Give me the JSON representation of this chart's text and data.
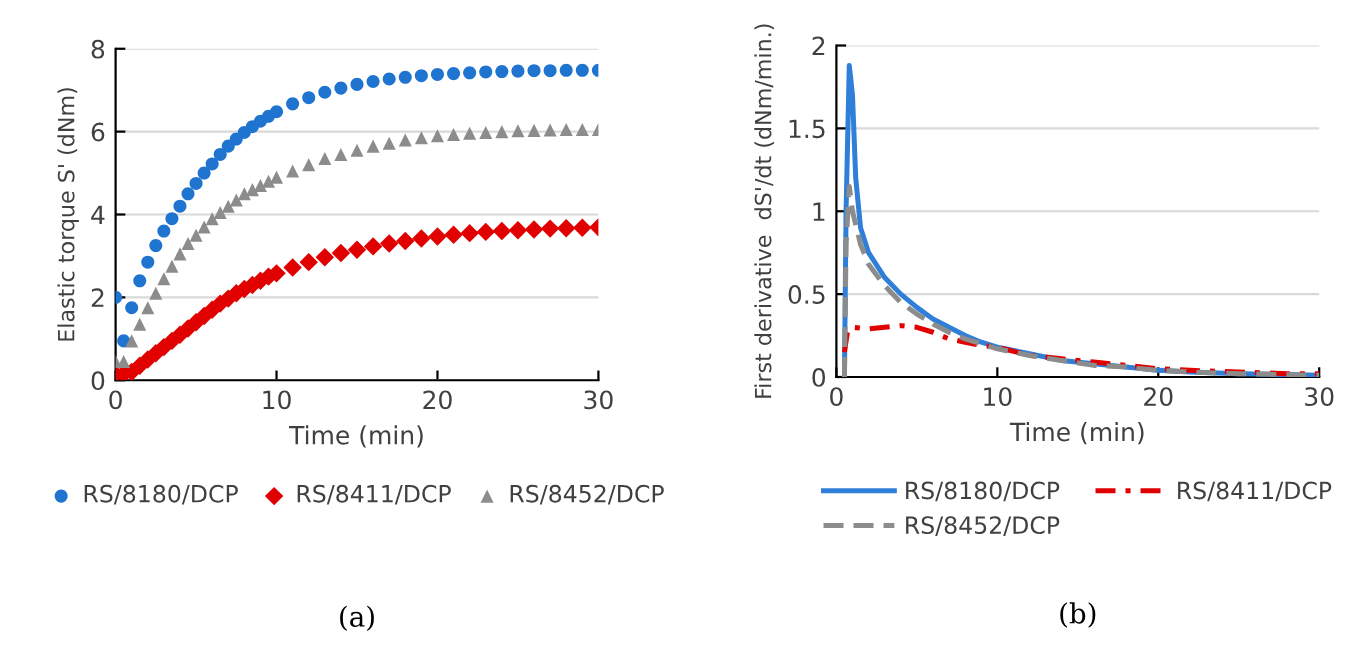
{
  "chart_data": [
    {
      "type": "scatter",
      "xlabel": "Time (min)",
      "ylabel": "Elastic torque S' (dNm)",
      "xlim": [
        0,
        30
      ],
      "xticks": [
        0,
        10,
        20,
        30
      ],
      "ylim": [
        0,
        8
      ],
      "yticks": [
        0,
        2,
        4,
        6,
        8
      ],
      "grid": "y",
      "legend": "bottom",
      "annotations": [
        "(a)"
      ],
      "x": [
        0,
        0.5,
        1,
        1.5,
        2,
        2.5,
        3,
        3.5,
        4,
        4.5,
        5,
        5.5,
        6,
        6.5,
        7,
        7.5,
        8,
        8.5,
        9,
        9.5,
        10,
        11,
        12,
        13,
        14,
        15,
        16,
        17,
        18,
        19,
        20,
        21,
        22,
        23,
        24,
        25,
        26,
        27,
        28,
        29,
        30
      ],
      "series": [
        {
          "name": "RS/8180/DCP",
          "color": "#1f74d0",
          "marker": "circle",
          "values": [
            2.0,
            0.95,
            1.75,
            2.4,
            2.85,
            3.25,
            3.6,
            3.9,
            4.2,
            4.5,
            4.75,
            5.0,
            5.22,
            5.45,
            5.65,
            5.82,
            5.98,
            6.12,
            6.25,
            6.37,
            6.48,
            6.67,
            6.82,
            6.95,
            7.05,
            7.14,
            7.21,
            7.27,
            7.31,
            7.35,
            7.38,
            7.4,
            7.42,
            7.44,
            7.45,
            7.46,
            7.47,
            7.47,
            7.48,
            7.48,
            7.48
          ]
        },
        {
          "name": "RS/8411/DCP",
          "color": "#e00000",
          "marker": "diamond",
          "values": [
            0.15,
            0.15,
            0.2,
            0.35,
            0.5,
            0.65,
            0.8,
            0.95,
            1.1,
            1.25,
            1.4,
            1.55,
            1.7,
            1.85,
            1.97,
            2.1,
            2.2,
            2.3,
            2.4,
            2.5,
            2.58,
            2.72,
            2.85,
            2.97,
            3.07,
            3.15,
            3.23,
            3.3,
            3.36,
            3.42,
            3.47,
            3.51,
            3.55,
            3.58,
            3.6,
            3.62,
            3.64,
            3.66,
            3.67,
            3.68,
            3.69
          ]
        },
        {
          "name": "RS/8452/DCP",
          "color": "#8c8c8c",
          "marker": "triangle",
          "values": [
            0.45,
            0.45,
            0.95,
            1.35,
            1.75,
            2.1,
            2.45,
            2.75,
            3.05,
            3.3,
            3.5,
            3.7,
            3.9,
            4.05,
            4.2,
            4.35,
            4.5,
            4.6,
            4.7,
            4.8,
            4.9,
            5.05,
            5.2,
            5.35,
            5.45,
            5.55,
            5.65,
            5.72,
            5.8,
            5.85,
            5.9,
            5.93,
            5.96,
            5.98,
            6.0,
            6.02,
            6.03,
            6.04,
            6.05,
            6.05,
            6.05
          ]
        }
      ]
    },
    {
      "type": "line",
      "xlabel": "Time (min)",
      "ylabel": "First derivative  dS'/dt (dNm/min.)",
      "xlim": [
        0,
        30
      ],
      "xticks": [
        0,
        10,
        20,
        30
      ],
      "ylim": [
        0,
        2
      ],
      "yticks": [
        0,
        0.5,
        1,
        1.5,
        2
      ],
      "grid": "y",
      "legend": "bottom",
      "annotations": [
        "(b)"
      ],
      "series": [
        {
          "name": "RS/8180/DCP",
          "color": "#2f7ed8",
          "line_style": "solid",
          "x": [
            0.5,
            0.6,
            0.8,
            1.0,
            1.2,
            1.5,
            2,
            3,
            4,
            5,
            6,
            7,
            8,
            9,
            10,
            12,
            14,
            16,
            18,
            20,
            22,
            25,
            30
          ],
          "values": [
            0,
            1.0,
            1.88,
            1.7,
            1.2,
            0.9,
            0.75,
            0.6,
            0.5,
            0.42,
            0.35,
            0.3,
            0.25,
            0.21,
            0.18,
            0.14,
            0.1,
            0.08,
            0.06,
            0.04,
            0.03,
            0.02,
            0.01
          ]
        },
        {
          "name": "RS/8411/DCP",
          "color": "#e00000",
          "line_style": "dashdot",
          "x": [
            0.5,
            0.7,
            1,
            2,
            3,
            4,
            5,
            6,
            7,
            8,
            9,
            10,
            12,
            14,
            16,
            18,
            20,
            22,
            25,
            28,
            30
          ],
          "values": [
            0.15,
            0.28,
            0.3,
            0.29,
            0.3,
            0.31,
            0.3,
            0.27,
            0.23,
            0.21,
            0.19,
            0.18,
            0.13,
            0.11,
            0.09,
            0.07,
            0.05,
            0.04,
            0.03,
            0.02,
            0.02
          ]
        },
        {
          "name": "RS/8452/DCP",
          "color": "#8c8c8c",
          "line_style": "dashed",
          "x": [
            0.5,
            0.6,
            0.8,
            1.0,
            1.5,
            2,
            3,
            4,
            5,
            6,
            7,
            8,
            9,
            10,
            12,
            14,
            16,
            18,
            20,
            22,
            25,
            30
          ],
          "values": [
            0,
            0.8,
            1.15,
            1.0,
            0.8,
            0.68,
            0.55,
            0.45,
            0.38,
            0.32,
            0.27,
            0.23,
            0.2,
            0.17,
            0.13,
            0.1,
            0.07,
            0.06,
            0.04,
            0.03,
            0.02,
            0.01
          ]
        }
      ]
    }
  ]
}
